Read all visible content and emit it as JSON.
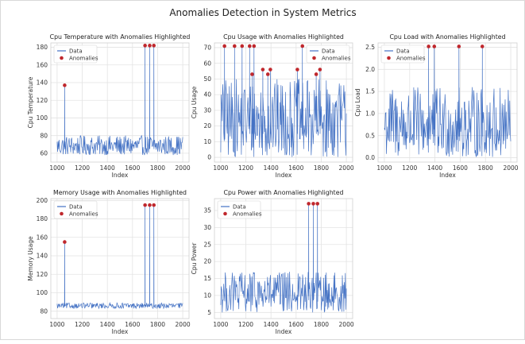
{
  "suptitle": "Anomalies Detection in System Metrics",
  "legend": {
    "data_label": "Data",
    "anomaly_label": "Anomalies",
    "line_color": "#4472c4",
    "anomaly_color": "#c0282d"
  },
  "chart_data": [
    {
      "type": "line",
      "title": "Cpu Temperature with Anomalies Highlighted",
      "xlabel": "Index",
      "ylabel": "Cpu Temperature",
      "xlim": [
        950,
        2050
      ],
      "ylim": [
        50,
        185
      ],
      "xticks": [
        1000,
        1200,
        1400,
        1600,
        1800,
        2000
      ],
      "yticks": [
        60,
        80,
        100,
        120,
        140,
        160,
        180
      ],
      "grid": true,
      "legend_position": "top-left",
      "noise": {
        "x_start": 1000,
        "x_end": 2000,
        "step": 4,
        "low": 58,
        "high": 80
      },
      "series": [
        {
          "name": "Data",
          "kind": "line"
        },
        {
          "name": "Anomalies",
          "kind": "scatter",
          "points": [
            [
              1060,
              137
            ],
            [
              1700,
              182
            ],
            [
              1737,
              182
            ],
            [
              1770,
              182
            ]
          ]
        }
      ]
    },
    {
      "type": "line",
      "title": "Cpu Usage with Anomalies Highlighted",
      "xlabel": "Index",
      "ylabel": "Cpu Usage",
      "xlim": [
        950,
        2050
      ],
      "ylim": [
        -3,
        73
      ],
      "xticks": [
        1000,
        1200,
        1400,
        1600,
        1800,
        2000
      ],
      "yticks": [
        0,
        10,
        20,
        30,
        40,
        50,
        60,
        70
      ],
      "grid": true,
      "legend_position": "top-right",
      "noise": {
        "x_start": 1000,
        "x_end": 2000,
        "step": 4,
        "low": 0,
        "high": 50
      },
      "series": [
        {
          "name": "Data",
          "kind": "line"
        },
        {
          "name": "Anomalies",
          "kind": "scatter",
          "points": [
            [
              1030,
              71
            ],
            [
              1110,
              71
            ],
            [
              1170,
              71
            ],
            [
              1230,
              71
            ],
            [
              1265,
              71
            ],
            [
              1250,
              53
            ],
            [
              1335,
              56
            ],
            [
              1375,
              53
            ],
            [
              1395,
              56
            ],
            [
              1610,
              56
            ],
            [
              1650,
              71
            ],
            [
              1760,
              53
            ],
            [
              1790,
              56
            ]
          ]
        }
      ]
    },
    {
      "type": "line",
      "title": "Cpu Load with Anomalies Highlighted",
      "xlabel": "Index",
      "ylabel": "Cpu Load",
      "xlim": [
        950,
        2050
      ],
      "ylim": [
        -0.1,
        2.6
      ],
      "xticks": [
        1000,
        1200,
        1400,
        1600,
        1800,
        2000
      ],
      "yticks": [
        0.0,
        0.5,
        1.0,
        1.5,
        2.0,
        2.5
      ],
      "grid": true,
      "legend_position": "top-left",
      "noise": {
        "x_start": 1000,
        "x_end": 2000,
        "step": 4,
        "low": 0.0,
        "high": 1.6
      },
      "series": [
        {
          "name": "Data",
          "kind": "line"
        },
        {
          "name": "Anomalies",
          "kind": "scatter",
          "points": [
            [
              1350,
              2.52
            ],
            [
              1395,
              2.52
            ],
            [
              1590,
              2.52
            ],
            [
              1775,
              2.52
            ]
          ]
        }
      ]
    },
    {
      "type": "line",
      "title": "Memory Usage with Anomalies Highlighted",
      "xlabel": "Index",
      "ylabel": "Memory Usage",
      "xlim": [
        950,
        2050
      ],
      "ylim": [
        72,
        202
      ],
      "xticks": [
        1000,
        1200,
        1400,
        1600,
        1800,
        2000
      ],
      "yticks": [
        80,
        100,
        120,
        140,
        160,
        180,
        200
      ],
      "grid": true,
      "legend_position": "top-left",
      "noise": {
        "x_start": 1000,
        "x_end": 2000,
        "step": 4,
        "low": 83,
        "high": 89
      },
      "series": [
        {
          "name": "Data",
          "kind": "line"
        },
        {
          "name": "Anomalies",
          "kind": "scatter",
          "points": [
            [
              1060,
              155
            ],
            [
              1700,
              195
            ],
            [
              1737,
              195
            ],
            [
              1770,
              195
            ]
          ]
        }
      ]
    },
    {
      "type": "line",
      "title": "Cpu Power with Anomalies Highlighted",
      "xlabel": "Index",
      "ylabel": "Cpu Power",
      "xlim": [
        950,
        2050
      ],
      "ylim": [
        3.2,
        38.5
      ],
      "xticks": [
        1000,
        1200,
        1400,
        1600,
        1800,
        2000
      ],
      "yticks": [
        5,
        10,
        15,
        20,
        25,
        30,
        35
      ],
      "grid": true,
      "legend_position": "top-left",
      "noise": {
        "x_start": 1000,
        "x_end": 2000,
        "step": 4,
        "low": 5,
        "high": 17
      },
      "series": [
        {
          "name": "Data",
          "kind": "line"
        },
        {
          "name": "Anomalies",
          "kind": "scatter",
          "points": [
            [
              1700,
              37
            ],
            [
              1737,
              37
            ],
            [
              1770,
              37
            ]
          ]
        }
      ]
    }
  ]
}
